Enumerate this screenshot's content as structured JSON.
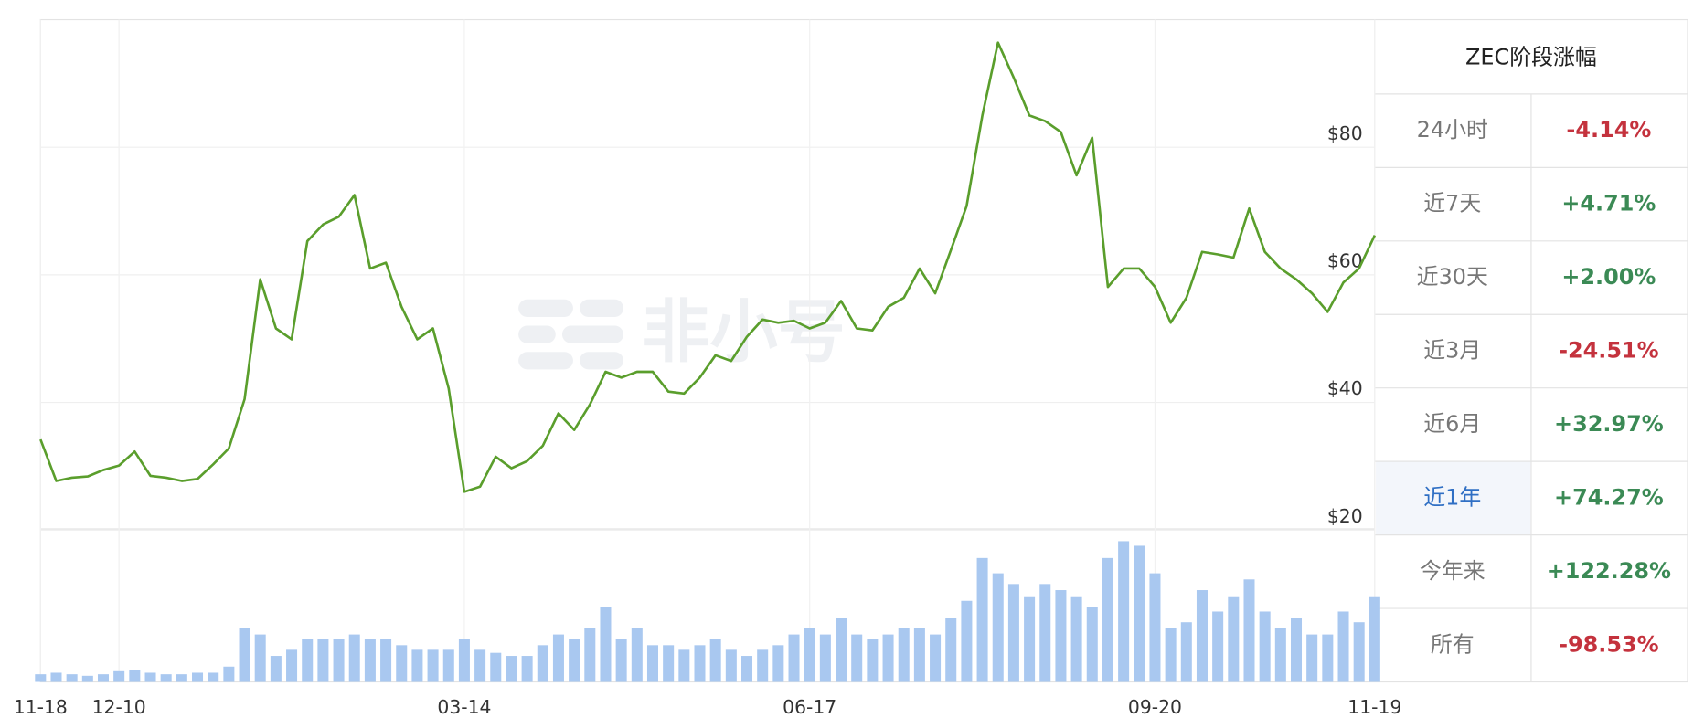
{
  "chart_data": {
    "type": "line",
    "categories": [
      "11-18",
      null,
      null,
      null,
      null,
      "12-10",
      null,
      null,
      null,
      null,
      null,
      null,
      null,
      null,
      null,
      null,
      null,
      null,
      null,
      null,
      null,
      null,
      null,
      null,
      null,
      null,
      null,
      "03-14",
      null,
      null,
      null,
      null,
      null,
      null,
      null,
      null,
      null,
      null,
      null,
      null,
      null,
      null,
      null,
      null,
      null,
      null,
      null,
      null,
      null,
      "06-17",
      null,
      null,
      null,
      null,
      null,
      null,
      null,
      null,
      null,
      null,
      null,
      null,
      null,
      null,
      null,
      null,
      null,
      null,
      null,
      null,
      null,
      "09-20",
      null,
      null,
      null,
      null,
      null,
      null,
      null,
      null,
      null,
      null,
      null,
      null,
      null,
      "11-19"
    ],
    "series": [
      {
        "color": "#5a9e2c",
        "values": [
          34.2,
          27.7,
          28.2,
          28.4,
          29.4,
          30.1,
          32.3,
          28.5,
          28.2,
          27.7,
          28.0,
          30.3,
          32.8,
          40.5,
          59.3,
          51.6,
          49.9,
          65.3,
          67.9,
          69.1,
          72.5,
          61.0,
          61.9,
          55.0,
          49.9,
          51.6,
          42.2,
          26.0,
          26.8,
          31.5,
          29.7,
          30.8,
          33.2,
          38.3,
          35.7,
          39.7,
          44.8,
          43.9,
          44.8,
          44.8,
          41.7,
          41.4,
          43.9,
          47.4,
          46.5,
          50.3,
          53.0,
          52.5,
          52.8,
          51.6,
          52.5,
          55.9,
          51.6,
          51.3,
          55.0,
          56.4,
          61.0,
          57.1,
          63.9,
          70.8,
          85.0,
          96.4,
          90.9,
          85.0,
          84.1,
          82.4,
          75.6,
          81.5,
          58.1,
          61.0,
          61.0,
          58.1,
          52.5,
          56.4,
          63.6,
          63.2,
          62.7,
          70.4,
          63.6,
          61.0,
          59.3,
          57.1,
          54.2,
          58.8,
          61.0,
          66.2
        ]
      },
      {
        "color": "#a9c8f0",
        "type": "bar",
        "axis": "y2",
        "values": [
          5,
          6,
          5,
          4,
          5,
          7,
          8,
          6,
          5,
          5,
          6,
          6,
          10,
          35,
          31,
          17,
          21,
          28,
          28,
          28,
          31,
          28,
          28,
          24,
          21,
          21,
          21,
          28,
          21,
          19,
          17,
          17,
          24,
          31,
          28,
          35,
          49,
          28,
          35,
          24,
          24,
          21,
          24,
          28,
          21,
          17,
          21,
          24,
          31,
          35,
          31,
          42,
          31,
          28,
          31,
          35,
          35,
          31,
          42,
          53,
          81,
          71,
          64,
          56,
          64,
          60,
          56,
          49,
          81,
          92,
          89,
          71,
          35,
          39,
          60,
          46,
          56,
          67,
          46,
          35,
          42,
          31,
          31,
          46,
          39,
          56
        ]
      }
    ],
    "ylim": [
      20,
      100
    ],
    "yticks": [
      {
        "value": 20,
        "label": "$20"
      },
      {
        "value": 40,
        "label": "$40"
      },
      {
        "value": 60,
        "label": "$60"
      },
      {
        "value": 80,
        "label": "$80"
      }
    ],
    "y2lim": [
      0,
      100
    ],
    "grid": true,
    "watermark": "非小号"
  },
  "table": {
    "title": "ZEC阶段涨幅",
    "rows": [
      [
        "24小时",
        "-4.14%"
      ],
      [
        "近7天",
        "+4.71%"
      ],
      [
        "近30天",
        "+2.00%"
      ],
      [
        "近3月",
        "-24.51%"
      ],
      [
        "近6月",
        "+32.97%"
      ],
      [
        "近1年",
        "+74.27%"
      ],
      [
        "今年来",
        "+122.28%"
      ],
      [
        "所有",
        "-98.53%"
      ]
    ],
    "active_row": 5,
    "colors": {
      "up": "#3b8a55",
      "down": "#c4323d",
      "active": "#2f6fc4"
    }
  }
}
